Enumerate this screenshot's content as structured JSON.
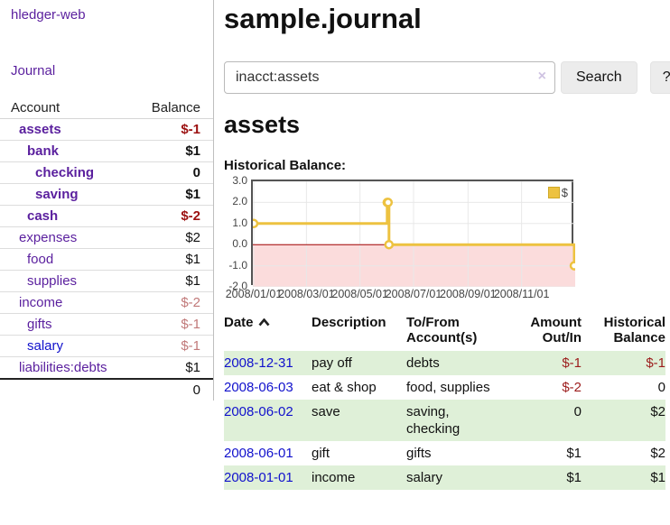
{
  "app": {
    "title": "hledger-web",
    "nav_journal": "Journal"
  },
  "sidebar": {
    "header": {
      "account": "Account",
      "balance": "Balance"
    },
    "accounts": [
      {
        "name": "assets",
        "balance": "$-1",
        "level": 1,
        "bold": true,
        "neg": "strong"
      },
      {
        "name": "bank",
        "balance": "$1",
        "level": 2,
        "bold": true,
        "neg": "none"
      },
      {
        "name": "checking",
        "balance": "0",
        "level": 3,
        "bold": true,
        "neg": "none"
      },
      {
        "name": "saving",
        "balance": "$1",
        "level": 3,
        "bold": true,
        "neg": "none"
      },
      {
        "name": "cash",
        "balance": "$-2",
        "level": 2,
        "bold": true,
        "neg": "strong"
      },
      {
        "name": "expenses",
        "balance": "$2",
        "level": 1,
        "bold": false,
        "neg": "none"
      },
      {
        "name": "food",
        "balance": "$1",
        "level": 2,
        "bold": false,
        "neg": "none"
      },
      {
        "name": "supplies",
        "balance": "$1",
        "level": 2,
        "bold": false,
        "neg": "none"
      },
      {
        "name": "income",
        "balance": "$-2",
        "level": 1,
        "bold": false,
        "neg": "faded"
      },
      {
        "name": "gifts",
        "balance": "$-1",
        "level": 2,
        "bold": false,
        "neg": "faded"
      },
      {
        "name": "salary",
        "balance": "$-1",
        "level": 2,
        "bold": false,
        "neg": "faded",
        "visited": false
      },
      {
        "name": "liabilities:debts",
        "balance": "$1",
        "level": 1,
        "bold": false,
        "neg": "none"
      }
    ],
    "total": "0"
  },
  "main": {
    "title": "sample.journal",
    "search": {
      "value": "inacct:assets",
      "clear_label": "×",
      "button": "Search",
      "help": "?"
    },
    "account_heading": "assets",
    "chart_label": "Historical Balance:"
  },
  "chart_data": {
    "type": "line",
    "title": "Historical Balance of assets",
    "step": true,
    "series": [
      {
        "name": "$",
        "color": "#EDC240",
        "points": [
          [
            "2008-01-01",
            1
          ],
          [
            "2008-06-01",
            2
          ],
          [
            "2008-06-02",
            2
          ],
          [
            "2008-06-03",
            0
          ],
          [
            "2008-12-31",
            -1
          ]
        ]
      }
    ],
    "ylim": [
      -2,
      3
    ],
    "yticks": [
      "3.0",
      "2.0",
      "1.0",
      "0.0",
      "-1.0",
      "-2.0"
    ],
    "xticks": [
      "2008/01/01",
      "2008/03/01",
      "2008/05/01",
      "2008/07/01",
      "2008/09/01",
      "2008/11/01"
    ],
    "legend": "$",
    "legend_position": "top-right",
    "grid": true,
    "grid_color": "#e8e8e8",
    "negative_region_color": "#fbdcdc",
    "zero_line_color": "#a40000",
    "border_color": "#545454"
  },
  "register": {
    "headers": [
      "Date",
      "Description",
      "To/From Account(s)",
      "Amount Out/In",
      "Historical Balance"
    ],
    "rows": [
      {
        "date": "2008-12-31",
        "description": "pay off",
        "accounts": "debts",
        "amount": "$-1",
        "balance": "$-1",
        "amount_neg": true,
        "balance_neg": true
      },
      {
        "date": "2008-06-03",
        "description": "eat & shop",
        "accounts": "food, supplies",
        "amount": "$-2",
        "balance": "0",
        "amount_neg": true,
        "balance_neg": false
      },
      {
        "date": "2008-06-02",
        "description": "save",
        "accounts": "saving, checking",
        "amount": "0",
        "balance": "$2",
        "amount_neg": false,
        "balance_neg": false
      },
      {
        "date": "2008-06-01",
        "description": "gift",
        "accounts": "gifts",
        "amount": "$1",
        "balance": "$2",
        "amount_neg": false,
        "balance_neg": false
      },
      {
        "date": "2008-01-01",
        "description": "income",
        "accounts": "salary",
        "amount": "$1",
        "balance": "$1",
        "amount_neg": false,
        "balance_neg": false
      }
    ]
  }
}
